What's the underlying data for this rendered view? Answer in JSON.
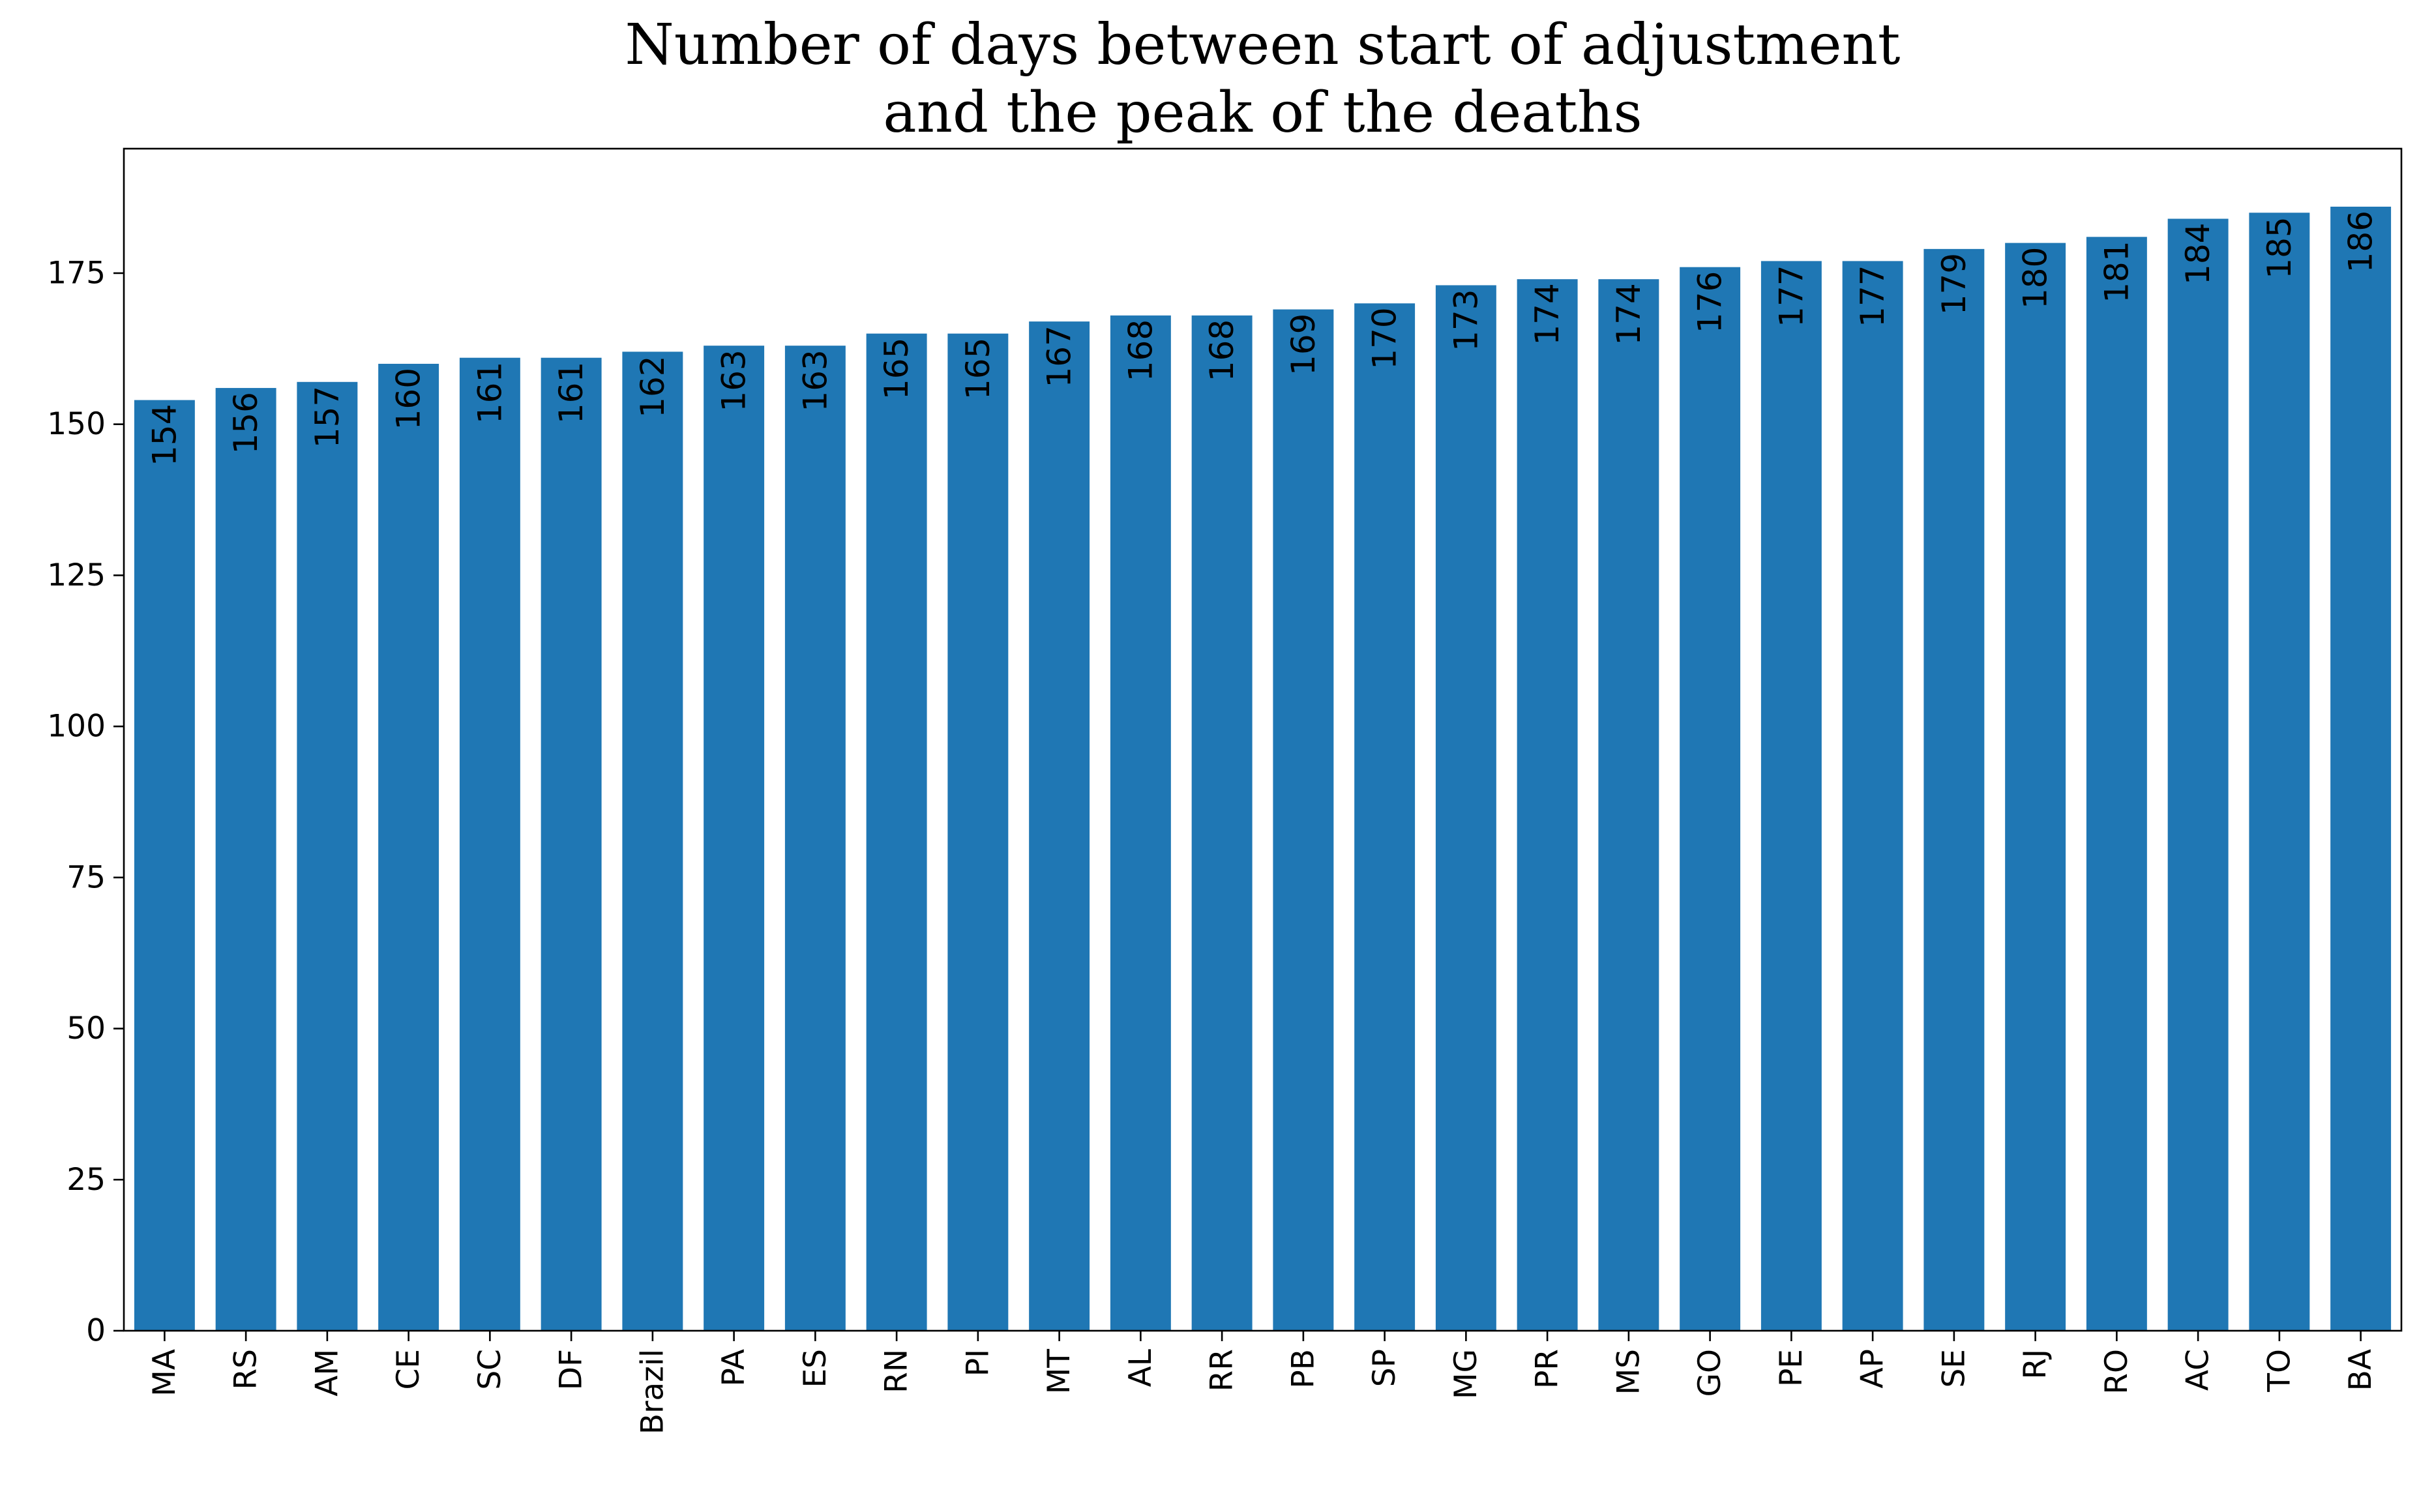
{
  "chart_data": {
    "type": "bar",
    "title_lines": [
      "Number of days between start of adjustment",
      "and the peak of the deaths"
    ],
    "xlabel": "",
    "ylabel": "",
    "categories": [
      "MA",
      "RS",
      "AM",
      "CE",
      "SC",
      "DF",
      "Brazil",
      "PA",
      "ES",
      "RN",
      "PI",
      "MT",
      "AL",
      "RR",
      "PB",
      "SP",
      "MG",
      "PR",
      "MS",
      "GO",
      "PE",
      "AP",
      "SE",
      "RJ",
      "RO",
      "AC",
      "TO",
      "BA"
    ],
    "values": [
      154,
      156,
      157,
      160,
      161,
      161,
      162,
      163,
      163,
      165,
      165,
      167,
      168,
      168,
      169,
      170,
      173,
      174,
      174,
      176,
      177,
      177,
      179,
      180,
      181,
      184,
      185,
      186
    ],
    "data_labels": [
      "154",
      "156",
      "157",
      "160",
      "161",
      "161",
      "162",
      "163",
      "163",
      "165",
      "165",
      "167",
      "168",
      "168",
      "169",
      "170",
      "173",
      "174",
      "174",
      "176",
      "177",
      "177",
      "179",
      "180",
      "181",
      "184",
      "185",
      "186"
    ],
    "ylim": [
      0,
      195.6
    ],
    "yticks": [
      0,
      25,
      50,
      75,
      100,
      125,
      150,
      175
    ],
    "ytick_labels": [
      "0",
      "25",
      "50",
      "75",
      "100",
      "125",
      "150",
      "175"
    ],
    "bar_color": "#1f77b4",
    "grid": false,
    "legend": "none"
  }
}
